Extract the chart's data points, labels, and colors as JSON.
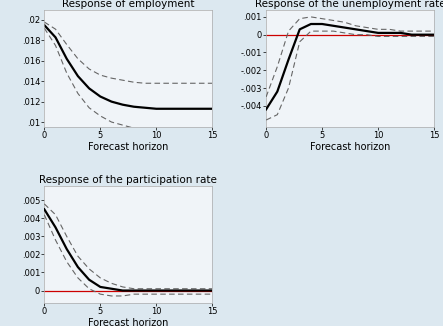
{
  "title1": "Response of employment",
  "title2": "Response of the unemployment rate",
  "title3": "Response of the participation rate",
  "xlabel": "Forecast horizon",
  "horizon": [
    0,
    1,
    2,
    3,
    4,
    5,
    6,
    7,
    8,
    9,
    10,
    11,
    12,
    13,
    14,
    15
  ],
  "emp_center": [
    0.0195,
    0.0183,
    0.0162,
    0.0145,
    0.0133,
    0.0125,
    0.012,
    0.0117,
    0.0115,
    0.0114,
    0.0113,
    0.0113,
    0.0113,
    0.0113,
    0.0113,
    0.0113
  ],
  "emp_upper": [
    0.0198,
    0.0191,
    0.0176,
    0.0162,
    0.0152,
    0.0146,
    0.0143,
    0.0141,
    0.0139,
    0.0138,
    0.0138,
    0.0138,
    0.0138,
    0.0138,
    0.0138,
    0.0138
  ],
  "emp_lower": [
    0.0192,
    0.0175,
    0.0148,
    0.0128,
    0.0114,
    0.0106,
    0.01,
    0.0097,
    0.0094,
    0.0093,
    0.0092,
    0.0092,
    0.0092,
    0.0092,
    0.0092,
    0.0092
  ],
  "emp_ylim": [
    0.0095,
    0.021
  ],
  "emp_yticks": [
    0.01,
    0.012,
    0.014,
    0.016,
    0.018,
    0.02
  ],
  "emp_ytick_labels": [
    ".01",
    ".012",
    ".014",
    ".016",
    ".018",
    ".02"
  ],
  "unemp_center": [
    -0.0042,
    -0.0032,
    -0.0014,
    0.0003,
    0.0006,
    0.0006,
    0.0005,
    0.0004,
    0.0003,
    0.0002,
    0.0001,
    0.0001,
    0.0001,
    0.0,
    0.0,
    0.0
  ],
  "unemp_upper": [
    -0.0035,
    -0.0018,
    0.0002,
    0.0009,
    0.001,
    0.0009,
    0.0008,
    0.0007,
    0.0005,
    0.0004,
    0.0003,
    0.0003,
    0.0002,
    0.0002,
    0.0002,
    0.0002
  ],
  "unemp_lower": [
    -0.0048,
    -0.0045,
    -0.003,
    -0.0004,
    0.0002,
    0.0002,
    0.0002,
    0.0001,
    0.0,
    0.0,
    -0.0001,
    -0.0001,
    -0.0001,
    -0.0001,
    -0.0001,
    -0.0001
  ],
  "unemp_ylim": [
    -0.0052,
    0.0014
  ],
  "unemp_yticks": [
    -0.004,
    -0.003,
    -0.002,
    -0.001,
    0.0,
    0.001
  ],
  "unemp_ytick_labels": [
    "-.004",
    "-.003",
    "-.002",
    "-.001",
    "0",
    ".001"
  ],
  "part_center": [
    0.0045,
    0.0035,
    0.0023,
    0.0013,
    0.0006,
    0.0002,
    0.0001,
    0.0,
    0.0,
    0.0,
    0.0,
    0.0,
    0.0,
    0.0,
    0.0,
    0.0
  ],
  "part_upper": [
    0.0048,
    0.0042,
    0.003,
    0.0019,
    0.0012,
    0.0007,
    0.0004,
    0.0002,
    0.0001,
    0.0001,
    0.0001,
    0.0001,
    0.0001,
    0.0001,
    0.0001,
    0.0001
  ],
  "part_lower": [
    0.0042,
    0.0028,
    0.0016,
    0.0007,
    0.0001,
    -0.0002,
    -0.0003,
    -0.0003,
    -0.0002,
    -0.0002,
    -0.0002,
    -0.0002,
    -0.0002,
    -0.0002,
    -0.0002,
    -0.0002
  ],
  "part_ylim": [
    -0.0007,
    0.0058
  ],
  "part_yticks": [
    0.0,
    0.001,
    0.002,
    0.003,
    0.004,
    0.005
  ],
  "part_ytick_labels": [
    "0",
    ".001",
    ".002",
    ".003",
    ".004",
    ".005"
  ],
  "xticks": [
    0,
    5,
    10,
    15
  ],
  "line_color": "#000000",
  "dash_color": "#666666",
  "red_color": "#cc0000",
  "fig_bg_color": "#dce8f0",
  "plot_bg_color": "#f0f4f8",
  "title_fontsize": 7.5,
  "label_fontsize": 7,
  "tick_fontsize": 6
}
